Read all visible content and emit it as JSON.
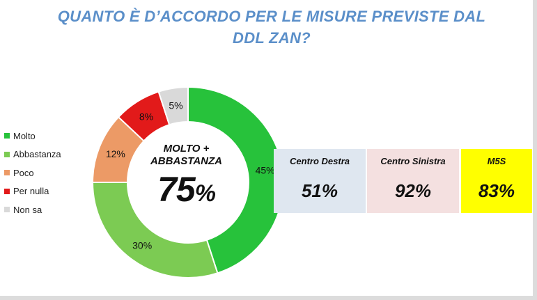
{
  "title_line1": "QUANTO È D’ACCORDO PER LE MISURE PREVISTE DAL",
  "title_line2": "DDL ZAN?",
  "colors": {
    "title": "#5b8fc9",
    "molto": "#27c23b",
    "abbastanza": "#7ccb53",
    "poco": "#ec9a66",
    "per_nulla": "#e21a1a",
    "non_sa": "#d9d9d9",
    "centro_destra_bg": "#dfe7f0",
    "centro_sinistra_bg": "#f4e0e0",
    "m5s_bg": "#ffff00"
  },
  "chart_data": {
    "type": "pie",
    "title": "QUANTO È D’ACCORDO PER LE MISURE PREVISTE DAL DDL ZAN?",
    "legend_position": "left",
    "donut": true,
    "categories": [
      "Molto",
      "Abbastanza",
      "Poco",
      "Per nulla",
      "Non sa"
    ],
    "values": [
      45,
      30,
      12,
      8,
      5
    ],
    "value_labels": [
      "45%",
      "30%",
      "12%",
      "8%",
      "5%"
    ],
    "colors": [
      "#27c23b",
      "#7ccb53",
      "#ec9a66",
      "#e21a1a",
      "#d9d9d9"
    ],
    "center_title": [
      "MOLTO +",
      "ABBASTANZA"
    ],
    "center_value": "75",
    "center_unit": "%"
  },
  "breakdown": [
    {
      "label": "Centro Destra",
      "value": "51%",
      "bg": "#dfe7f0"
    },
    {
      "label": "Centro Sinistra",
      "value": "92%",
      "bg": "#f4e0e0"
    },
    {
      "label": "M5S",
      "value": "83%",
      "bg": "#ffff00"
    }
  ]
}
